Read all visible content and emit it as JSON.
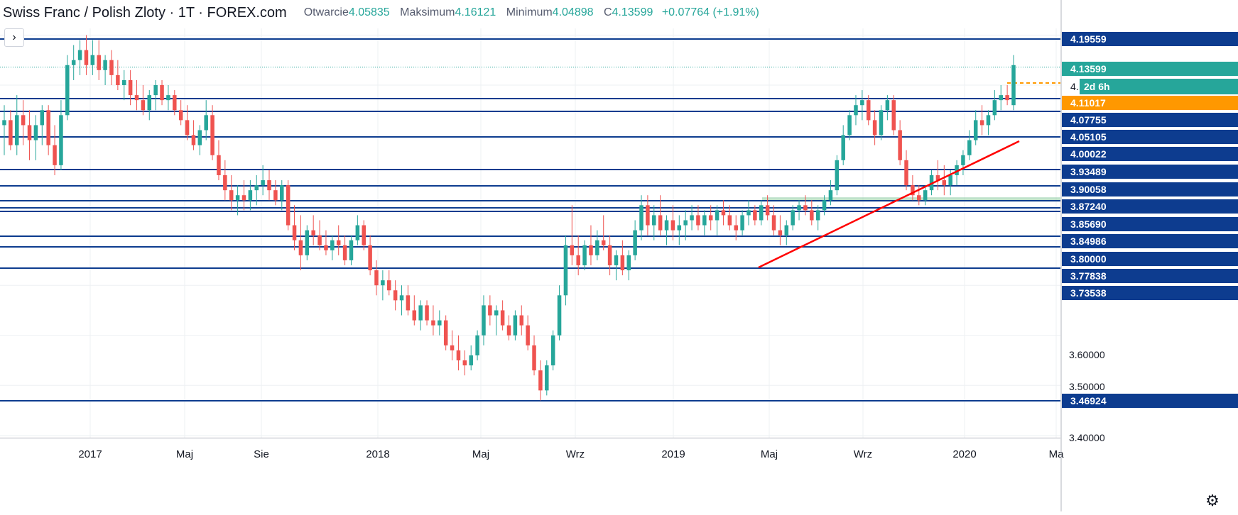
{
  "header": {
    "symbol": "Swiss Franc / Polish Zloty · 1T · FOREX.com",
    "open_label": "Otwarcie",
    "open_value": "4.05835",
    "high_label": "Maksimum",
    "high_value": "4.16121",
    "low_label": "Minimum",
    "low_value": "4.04898",
    "close_label": "C",
    "close_value": "4.13599",
    "change": "+0.07764 (+1.91%)"
  },
  "controls": {
    "collapse_icon": "chevron-right-icon",
    "collapse_glyph": "›",
    "settings_icon": "gear-icon",
    "settings_glyph": "⚙"
  },
  "colors": {
    "up": "#26a69a",
    "down": "#ef5350",
    "level_line": "#0d3c8f",
    "trendline": "#ff0000",
    "countdown": "#ff9800",
    "grid": "#eef0f3",
    "axis_text": "#131722",
    "tag_bg": "#0d3c8f",
    "current_tag_bg": "#26a69a",
    "green_band": "#8bc8a0"
  },
  "chart_data": {
    "type": "candlestick",
    "symbol": "Swiss Franc / Polish Zloty",
    "interval": "1T",
    "y_ticks": [
      "3.40000",
      "3.50000",
      "3.60000"
    ],
    "x_ticks": [
      "2017",
      "Maj",
      "Sie",
      "2018",
      "Maj",
      "Wrz",
      "2019",
      "Maj",
      "Wrz",
      "2020",
      "Ma"
    ],
    "current_price": "4.13599",
    "countdown_price": "4.11017",
    "countdown_hidden_label": "4.",
    "countdown": "2d 6h",
    "horizontal_levels": [
      "4.19559",
      "4.07755",
      "4.05105",
      "4.00022",
      "3.93489",
      "3.90058",
      "3.87240",
      "3.85690",
      "3.84986",
      "3.80000",
      "3.77838",
      "3.73538",
      "3.46924"
    ],
    "trendline": {
      "from": {
        "date": "2019-03",
        "price": 3.78
      },
      "to": {
        "date": "2020-03",
        "price": 4.06
      }
    },
    "candles": [
      [
        4.02,
        4.06,
        3.96,
        4.03
      ],
      [
        4.03,
        4.05,
        3.97,
        3.98
      ],
      [
        3.98,
        4.08,
        3.96,
        4.04
      ],
      [
        4.04,
        4.07,
        3.98,
        4.02
      ],
      [
        4.02,
        4.05,
        3.95,
        3.99
      ],
      [
        3.99,
        4.04,
        3.95,
        4.02
      ],
      [
        4.02,
        4.06,
        3.98,
        4.05
      ],
      [
        4.05,
        4.06,
        3.96,
        3.98
      ],
      [
        3.98,
        4.02,
        3.92,
        3.94
      ],
      [
        3.94,
        4.07,
        3.93,
        4.04
      ],
      [
        4.04,
        4.16,
        4.03,
        4.14
      ],
      [
        4.14,
        4.18,
        4.11,
        4.15
      ],
      [
        4.15,
        4.19,
        4.12,
        4.17
      ],
      [
        4.17,
        4.2,
        4.12,
        4.14
      ],
      [
        4.14,
        4.19,
        4.12,
        4.16
      ],
      [
        4.16,
        4.19,
        4.11,
        4.13
      ],
      [
        4.13,
        4.16,
        4.1,
        4.15
      ],
      [
        4.15,
        4.17,
        4.1,
        4.12
      ],
      [
        4.12,
        4.15,
        4.09,
        4.1
      ],
      [
        4.1,
        4.13,
        4.07,
        4.11
      ],
      [
        4.11,
        4.13,
        4.06,
        4.08
      ],
      [
        4.08,
        4.11,
        4.05,
        4.07
      ],
      [
        4.07,
        4.1,
        4.04,
        4.05
      ],
      [
        4.05,
        4.09,
        4.03,
        4.08
      ],
      [
        4.08,
        4.11,
        4.05,
        4.1
      ],
      [
        4.1,
        4.11,
        4.06,
        4.07
      ],
      [
        4.07,
        4.1,
        4.05,
        4.08
      ],
      [
        4.08,
        4.09,
        4.04,
        4.05
      ],
      [
        4.05,
        4.07,
        4.02,
        4.03
      ],
      [
        4.03,
        4.06,
        3.99,
        4.0
      ],
      [
        4.0,
        4.03,
        3.97,
        3.98
      ],
      [
        3.98,
        4.02,
        3.96,
        4.01
      ],
      [
        4.01,
        4.07,
        3.99,
        4.04
      ],
      [
        4.04,
        4.06,
        3.95,
        3.96
      ],
      [
        3.96,
        3.99,
        3.91,
        3.92
      ],
      [
        3.92,
        3.95,
        3.87,
        3.89
      ],
      [
        3.89,
        3.92,
        3.85,
        3.87
      ],
      [
        3.87,
        3.9,
        3.84,
        3.88
      ],
      [
        3.88,
        3.91,
        3.85,
        3.87
      ],
      [
        3.87,
        3.91,
        3.85,
        3.89
      ],
      [
        3.89,
        3.92,
        3.86,
        3.9
      ],
      [
        3.9,
        3.94,
        3.88,
        3.91
      ],
      [
        3.91,
        3.93,
        3.87,
        3.89
      ],
      [
        3.89,
        3.91,
        3.86,
        3.87
      ],
      [
        3.87,
        3.91,
        3.85,
        3.9
      ],
      [
        3.9,
        3.91,
        3.81,
        3.82
      ],
      [
        3.82,
        3.86,
        3.77,
        3.79
      ],
      [
        3.79,
        3.84,
        3.73,
        3.76
      ],
      [
        3.76,
        3.82,
        3.75,
        3.81
      ],
      [
        3.81,
        3.84,
        3.78,
        3.8
      ],
      [
        3.8,
        3.83,
        3.77,
        3.78
      ],
      [
        3.78,
        3.81,
        3.76,
        3.77
      ],
      [
        3.77,
        3.8,
        3.75,
        3.79
      ],
      [
        3.79,
        3.82,
        3.76,
        3.78
      ],
      [
        3.78,
        3.8,
        3.74,
        3.75
      ],
      [
        3.75,
        3.8,
        3.74,
        3.79
      ],
      [
        3.79,
        3.84,
        3.78,
        3.82
      ],
      [
        3.82,
        3.83,
        3.77,
        3.78
      ],
      [
        3.78,
        3.8,
        3.72,
        3.73
      ],
      [
        3.73,
        3.75,
        3.68,
        3.7
      ],
      [
        3.7,
        3.73,
        3.67,
        3.71
      ],
      [
        3.71,
        3.73,
        3.68,
        3.69
      ],
      [
        3.69,
        3.71,
        3.65,
        3.67
      ],
      [
        3.67,
        3.7,
        3.64,
        3.68
      ],
      [
        3.68,
        3.7,
        3.64,
        3.65
      ],
      [
        3.65,
        3.68,
        3.62,
        3.63
      ],
      [
        3.63,
        3.67,
        3.61,
        3.66
      ],
      [
        3.66,
        3.67,
        3.62,
        3.63
      ],
      [
        3.63,
        3.66,
        3.6,
        3.62
      ],
      [
        3.62,
        3.65,
        3.6,
        3.63
      ],
      [
        3.63,
        3.64,
        3.57,
        3.58
      ],
      [
        3.58,
        3.61,
        3.55,
        3.57
      ],
      [
        3.57,
        3.6,
        3.53,
        3.55
      ],
      [
        3.55,
        3.57,
        3.52,
        3.54
      ],
      [
        3.54,
        3.58,
        3.53,
        3.56
      ],
      [
        3.56,
        3.61,
        3.55,
        3.6
      ],
      [
        3.6,
        3.68,
        3.58,
        3.66
      ],
      [
        3.66,
        3.68,
        3.62,
        3.64
      ],
      [
        3.64,
        3.66,
        3.6,
        3.65
      ],
      [
        3.65,
        3.67,
        3.61,
        3.62
      ],
      [
        3.62,
        3.64,
        3.59,
        3.6
      ],
      [
        3.6,
        3.65,
        3.59,
        3.64
      ],
      [
        3.64,
        3.66,
        3.6,
        3.62
      ],
      [
        3.62,
        3.64,
        3.57,
        3.58
      ],
      [
        3.58,
        3.6,
        3.52,
        3.53
      ],
      [
        3.53,
        3.55,
        3.47,
        3.49
      ],
      [
        3.49,
        3.55,
        3.48,
        3.54
      ],
      [
        3.54,
        3.61,
        3.53,
        3.6
      ],
      [
        3.6,
        3.7,
        3.59,
        3.68
      ],
      [
        3.68,
        3.8,
        3.66,
        3.78
      ],
      [
        3.78,
        3.86,
        3.74,
        3.76
      ],
      [
        3.76,
        3.8,
        3.72,
        3.74
      ],
      [
        3.74,
        3.79,
        3.73,
        3.78
      ],
      [
        3.78,
        3.82,
        3.74,
        3.76
      ],
      [
        3.76,
        3.81,
        3.75,
        3.79
      ],
      [
        3.79,
        3.84,
        3.77,
        3.78
      ],
      [
        3.78,
        3.8,
        3.72,
        3.74
      ],
      [
        3.74,
        3.77,
        3.71,
        3.76
      ],
      [
        3.76,
        3.79,
        3.72,
        3.73
      ],
      [
        3.73,
        3.77,
        3.71,
        3.76
      ],
      [
        3.76,
        3.83,
        3.75,
        3.81
      ],
      [
        3.81,
        3.88,
        3.79,
        3.86
      ],
      [
        3.86,
        3.88,
        3.8,
        3.82
      ],
      [
        3.82,
        3.86,
        3.79,
        3.84
      ],
      [
        3.84,
        3.88,
        3.8,
        3.81
      ],
      [
        3.81,
        3.84,
        3.78,
        3.83
      ],
      [
        3.83,
        3.86,
        3.79,
        3.81
      ],
      [
        3.81,
        3.84,
        3.78,
        3.82
      ],
      [
        3.82,
        3.85,
        3.79,
        3.83
      ],
      [
        3.83,
        3.86,
        3.81,
        3.84
      ],
      [
        3.84,
        3.86,
        3.81,
        3.82
      ],
      [
        3.82,
        3.85,
        3.8,
        3.84
      ],
      [
        3.84,
        3.86,
        3.81,
        3.83
      ],
      [
        3.83,
        3.86,
        3.8,
        3.85
      ],
      [
        3.85,
        3.87,
        3.82,
        3.84
      ],
      [
        3.84,
        3.86,
        3.81,
        3.82
      ],
      [
        3.82,
        3.84,
        3.79,
        3.81
      ],
      [
        3.81,
        3.85,
        3.8,
        3.84
      ],
      [
        3.84,
        3.87,
        3.82,
        3.85
      ],
      [
        3.85,
        3.86,
        3.82,
        3.83
      ],
      [
        3.83,
        3.87,
        3.82,
        3.86
      ],
      [
        3.86,
        3.88,
        3.83,
        3.84
      ],
      [
        3.84,
        3.86,
        3.8,
        3.81
      ],
      [
        3.81,
        3.84,
        3.78,
        3.8
      ],
      [
        3.8,
        3.83,
        3.78,
        3.82
      ],
      [
        3.82,
        3.86,
        3.81,
        3.85
      ],
      [
        3.85,
        3.87,
        3.83,
        3.86
      ],
      [
        3.86,
        3.88,
        3.84,
        3.85
      ],
      [
        3.85,
        3.87,
        3.82,
        3.83
      ],
      [
        3.83,
        3.86,
        3.81,
        3.85
      ],
      [
        3.85,
        3.88,
        3.84,
        3.87
      ],
      [
        3.87,
        3.91,
        3.86,
        3.89
      ],
      [
        3.89,
        3.96,
        3.88,
        3.95
      ],
      [
        3.95,
        4.02,
        3.94,
        4.0
      ],
      [
        4.0,
        4.05,
        3.99,
        4.04
      ],
      [
        4.04,
        4.08,
        4.02,
        4.06
      ],
      [
        4.06,
        4.09,
        4.03,
        4.07
      ],
      [
        4.07,
        4.08,
        4.02,
        4.03
      ],
      [
        4.03,
        4.05,
        3.98,
        4.0
      ],
      [
        4.0,
        4.06,
        3.99,
        4.05
      ],
      [
        4.05,
        4.08,
        4.03,
        4.07
      ],
      [
        4.07,
        4.08,
        4.0,
        4.01
      ],
      [
        4.01,
        4.03,
        3.94,
        3.95
      ],
      [
        3.95,
        3.97,
        3.89,
        3.9
      ],
      [
        3.9,
        3.92,
        3.87,
        3.88
      ],
      [
        3.88,
        3.9,
        3.86,
        3.87
      ],
      [
        3.87,
        3.9,
        3.86,
        3.89
      ],
      [
        3.89,
        3.93,
        3.88,
        3.92
      ],
      [
        3.92,
        3.95,
        3.89,
        3.91
      ],
      [
        3.91,
        3.94,
        3.88,
        3.9
      ],
      [
        3.9,
        3.93,
        3.88,
        3.92
      ],
      [
        3.92,
        3.95,
        3.9,
        3.94
      ],
      [
        3.94,
        3.97,
        3.92,
        3.96
      ],
      [
        3.96,
        4.01,
        3.95,
        3.99
      ],
      [
        3.99,
        4.05,
        3.98,
        4.03
      ],
      [
        4.03,
        4.06,
        4.0,
        4.02
      ],
      [
        4.02,
        4.05,
        4.0,
        4.04
      ],
      [
        4.04,
        4.09,
        4.03,
        4.07
      ],
      [
        4.07,
        4.1,
        4.05,
        4.08
      ],
      [
        4.08,
        4.1,
        4.06,
        4.07
      ],
      [
        4.06,
        4.16,
        4.05,
        4.14
      ]
    ]
  }
}
